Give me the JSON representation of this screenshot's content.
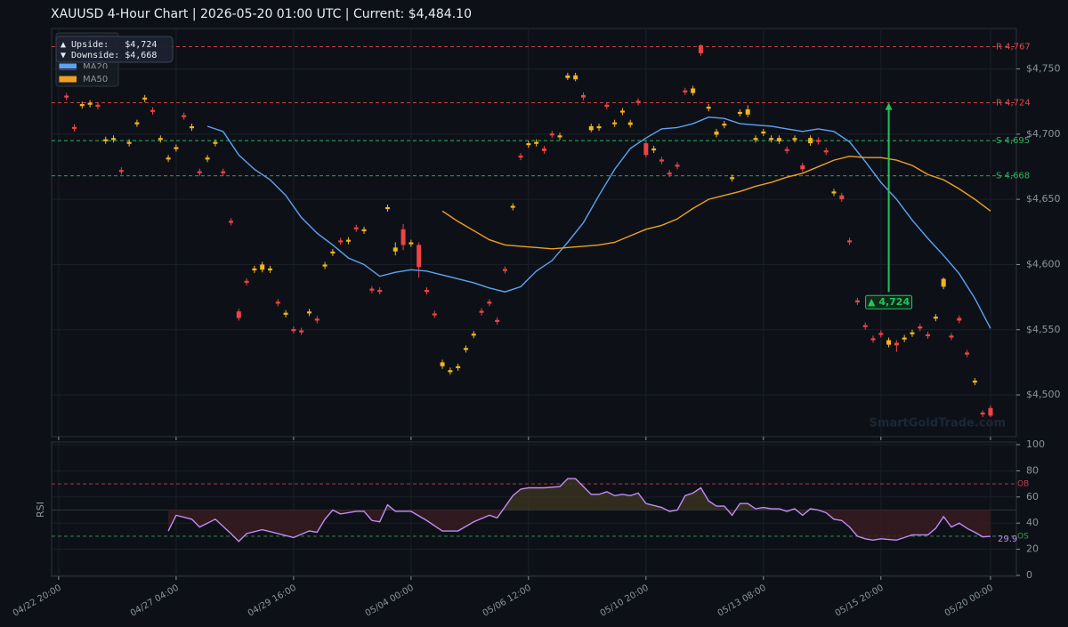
{
  "chart_data": [
    {
      "type": "candlestick",
      "title": "XAUUSD  4-Hour Chart  |  2026-05-20 01:00 UTC  |  Current: $4,484.10",
      "x": [
        1,
        2,
        3,
        4,
        5,
        6,
        7,
        8,
        9,
        10,
        11,
        12,
        13,
        14,
        15,
        16,
        17,
        18,
        19,
        20,
        21,
        22,
        23,
        24,
        25,
        26,
        27,
        28,
        29,
        30,
        31,
        32,
        33,
        34,
        35,
        36,
        37,
        38,
        39,
        40,
        41,
        42,
        43,
        44,
        45,
        46,
        47,
        48,
        49,
        50,
        51,
        52,
        53,
        54,
        55,
        56,
        57,
        58,
        59,
        60,
        61,
        62,
        63,
        64,
        65,
        66,
        67,
        68,
        69,
        70,
        71,
        72,
        73,
        74,
        75,
        76,
        77,
        78,
        79,
        80,
        81,
        82,
        83,
        84,
        85,
        86,
        87,
        88,
        89,
        90,
        91,
        92,
        93,
        94,
        95,
        96,
        97,
        98,
        99,
        100,
        101,
        102,
        103,
        104,
        105,
        106,
        107,
        108,
        109,
        110,
        111,
        112,
        113,
        114,
        115,
        116,
        117,
        118,
        119
      ],
      "open": [
        4729.5,
        4705.5,
        4721.5,
        4722.5,
        4722.5,
        4694.5,
        4695.5,
        4672.5,
        4692.5,
        4707.5,
        4726.5,
        4718.5,
        4695.5,
        4680.5,
        4688.5,
        4714.5,
        4704.5,
        4671.5,
        4680.5,
        4692.5,
        4671.5,
        4633.5,
        4564,
        4587.5,
        4595.5,
        4596,
        4595.5,
        4571.5,
        4561.5,
        4550.5,
        4549.5,
        4562.5,
        4558.5,
        4598.5,
        4608.5,
        4618.5,
        4617.5,
        4628.5,
        4625.5,
        4581.5,
        4580.5,
        4642.5,
        4610,
        4627,
        4615.5,
        4615,
        4580.5,
        4562.5,
        4522,
        4517.5,
        4520.5,
        4534.5,
        4545.5,
        4564.5,
        4571.5,
        4557.5,
        4596.5,
        4643.5,
        4683.5,
        4691.5,
        4692.5,
        4689,
        4700.5,
        4697.5,
        4743,
        4742,
        4730,
        4703,
        4704.5,
        4722.5,
        4707.5,
        4716.5,
        4707,
        4725.5,
        4693,
        4687.5,
        4680.5,
        4670.5,
        4676.5,
        4733.5,
        4731.5,
        4768,
        4719.5,
        4699.5,
        4706.5,
        4665.5,
        4715.5,
        4715,
        4695.5,
        4700.5,
        4695.5,
        4694.5,
        4688.5,
        4695.5,
        4676,
        4693,
        4695.5,
        4687.5,
        4654.5,
        4653,
        4618.5,
        4572.5,
        4553.5,
        4543.5,
        4547.5,
        4538.5,
        4540,
        4542.5,
        4546.5,
        4552.5,
        4546.5,
        4558.5,
        4583,
        4545.5,
        4559,
        4532.5,
        4509.5,
        4486.5,
        4490
      ],
      "high": [
        4731.5,
        4707.5,
        4725,
        4726,
        4724.5,
        4698,
        4699,
        4674.5,
        4696,
        4711,
        4730,
        4720.5,
        4699,
        4684,
        4692,
        4716.5,
        4708,
        4673.5,
        4684,
        4696,
        4673.5,
        4635.5,
        4566,
        4589.5,
        4599,
        4602,
        4599,
        4573.5,
        4565,
        4552.5,
        4551.5,
        4566,
        4560.5,
        4602,
        4612,
        4620.5,
        4621,
        4630.5,
        4629,
        4583.5,
        4582.5,
        4646,
        4617,
        4631,
        4619,
        4617,
        4582.5,
        4564.5,
        4527,
        4521,
        4524,
        4538,
        4549,
        4566.5,
        4573.5,
        4559.5,
        4598.5,
        4647,
        4685.5,
        4695,
        4696,
        4691,
        4702.5,
        4701,
        4747,
        4747,
        4732,
        4708,
        4708,
        4724.5,
        4711,
        4720,
        4711,
        4727.5,
        4695,
        4691,
        4682.5,
        4672.5,
        4678.5,
        4735.5,
        4737,
        4769,
        4723,
        4704,
        4710,
        4669,
        4719,
        4722,
        4699,
        4704,
        4699,
        4699,
        4690.5,
        4699,
        4678,
        4699,
        4697.5,
        4689.5,
        4658,
        4655,
        4620.5,
        4574.5,
        4555.5,
        4545.5,
        4549.5,
        4544,
        4542,
        4546,
        4550,
        4554.5,
        4548.5,
        4562,
        4590,
        4547.5,
        4561,
        4534.5,
        4513,
        4488,
        4492
      ],
      "low": [
        4726,
        4702,
        4719.5,
        4720.5,
        4719,
        4692.5,
        4693.5,
        4669,
        4690.5,
        4705.5,
        4724.5,
        4715,
        4693.5,
        4678.5,
        4686.5,
        4711,
        4702.5,
        4668,
        4678.5,
        4690.5,
        4668,
        4630,
        4557,
        4584,
        4593.5,
        4594,
        4593.5,
        4568,
        4559.5,
        4547,
        4546,
        4560.5,
        4555,
        4596.5,
        4606.5,
        4615,
        4615.5,
        4625,
        4623.5,
        4578,
        4577,
        4640.5,
        4607,
        4611,
        4613.5,
        4590,
        4577,
        4559,
        4520,
        4515.5,
        4518.5,
        4532.5,
        4543.5,
        4561,
        4568,
        4554,
        4593,
        4641.5,
        4680,
        4689.5,
        4690.5,
        4685,
        4697,
        4695.5,
        4741.5,
        4740.5,
        4726,
        4701.5,
        4702.5,
        4719,
        4705.5,
        4714.5,
        4705,
        4722,
        4682,
        4685.5,
        4677,
        4667,
        4673,
        4730,
        4729.5,
        4760,
        4717.5,
        4697.5,
        4704.5,
        4663.5,
        4713.5,
        4713,
        4693.5,
        4698.5,
        4693.5,
        4692.5,
        4685,
        4693.5,
        4671,
        4691,
        4692,
        4684,
        4652.5,
        4648,
        4615,
        4569,
        4550,
        4540,
        4544,
        4536.5,
        4533,
        4540.5,
        4544.5,
        4549,
        4543,
        4556.5,
        4581,
        4542,
        4555,
        4529,
        4507.5,
        4483,
        4483
      ],
      "close": [
        4728,
        4704,
        4723,
        4724,
        4721,
        4696,
        4697,
        4671,
        4694,
        4709,
        4728,
        4717,
        4697,
        4682,
        4690,
        4713,
        4706,
        4670,
        4682,
        4694,
        4670,
        4632,
        4559,
        4586,
        4597,
        4600,
        4597,
        4570,
        4563,
        4549,
        4548,
        4564,
        4557,
        4600,
        4610,
        4617,
        4619,
        4627,
        4627,
        4580,
        4579,
        4644,
        4613,
        4615,
        4617,
        4598,
        4579,
        4561,
        4525,
        4519,
        4522,
        4536,
        4547,
        4563,
        4570,
        4556,
        4595,
        4645,
        4682,
        4693,
        4694,
        4687,
        4699,
        4699,
        4745,
        4745,
        4728,
        4706,
        4706,
        4721,
        4709,
        4718,
        4709,
        4724,
        4684,
        4689,
        4679,
        4669,
        4675,
        4732,
        4735,
        4762,
        4721,
        4702,
        4708,
        4667,
        4717,
        4719,
        4697,
        4702,
        4697,
        4697,
        4687,
        4697,
        4673,
        4697,
        4694,
        4686,
        4656,
        4650,
        4617,
        4571,
        4552,
        4542,
        4546,
        4542,
        4538,
        4544,
        4548,
        4551,
        4545,
        4560,
        4589,
        4544,
        4557,
        4531,
        4511,
        4485,
        4484.1
      ],
      "up_color": "#f5b324",
      "down_color": "#ef4444",
      "series": [
        {
          "name": "MA20",
          "color": "#5ea2f5",
          "x": [
            19,
            21,
            23,
            25,
            27,
            29,
            31,
            33,
            35,
            37,
            39,
            41,
            43,
            45,
            47,
            49,
            51,
            53,
            55,
            57,
            59,
            61,
            63,
            65,
            67,
            69,
            71,
            73,
            75,
            77,
            79,
            81,
            83,
            85,
            87,
            89,
            91,
            93,
            95,
            97,
            99,
            101,
            103,
            105,
            107,
            109,
            111,
            113,
            115,
            117,
            119
          ],
          "values": [
            4706,
            4702,
            4684,
            4673,
            4665,
            4653,
            4636,
            4624,
            4615,
            4605,
            4600,
            4591,
            4594,
            4596,
            4595,
            4592,
            4589,
            4586,
            4582,
            4579,
            4583,
            4595,
            4603,
            4617,
            4632,
            4653,
            4673,
            4689,
            4697,
            4704,
            4705,
            4708,
            4713,
            4712,
            4708,
            4707,
            4706,
            4704,
            4702,
            4704,
            4702,
            4694,
            4679,
            4663,
            4650,
            4634,
            4620,
            4607,
            4593,
            4574,
            4551
          ]
        },
        {
          "name": "MA50",
          "color": "#f0a020",
          "x": [
            49,
            51,
            53,
            55,
            57,
            59,
            61,
            63,
            65,
            67,
            69,
            71,
            73,
            75,
            77,
            79,
            81,
            83,
            85,
            87,
            89,
            91,
            93,
            95,
            97,
            99,
            101,
            103,
            105,
            107,
            109,
            111,
            113,
            115,
            117,
            119
          ],
          "values": [
            4641,
            4633,
            4626,
            4619,
            4615,
            4614,
            4613,
            4612,
            4613,
            4614,
            4615,
            4617,
            4622,
            4627,
            4630,
            4635,
            4643,
            4650,
            4653,
            4656,
            4660,
            4663,
            4667,
            4670,
            4675,
            4680,
            4683,
            4682,
            4682,
            4680,
            4676,
            4669,
            4665,
            4658,
            4650,
            4641
          ]
        }
      ],
      "levels": [
        {
          "value": 4767,
          "label": "R 4,767",
          "color": "#e04848"
        },
        {
          "value": 4724,
          "label": "R 4,724",
          "color": "#e04848"
        },
        {
          "value": 4695,
          "label": "S 4,695",
          "color": "#2fb35a"
        },
        {
          "value": 4668,
          "label": "S 4,668",
          "color": "#2fb35a"
        }
      ],
      "annotation": {
        "text": "▲ 4,724",
        "x": 106,
        "y_from": 4579,
        "y_to": 4724,
        "color": "#22c55e"
      },
      "info": [
        "▲ Upside:   $4,724",
        "▼ Downside: $4,668"
      ],
      "watermark": "SmartGoldTrade.com",
      "xlim": [
        -0.9,
        122.3
      ],
      "ylim": [
        4468,
        4781
      ],
      "yticks": [
        {
          "value": 4500,
          "label": "$4,500"
        },
        {
          "value": 4550,
          "label": "$4,550"
        },
        {
          "value": 4600,
          "label": "$4,600"
        },
        {
          "value": 4650,
          "label": "$4,650"
        },
        {
          "value": 4700,
          "label": "$4,700"
        },
        {
          "value": 4750,
          "label": "$4,750"
        }
      ],
      "grid": true,
      "legend": "upper left"
    },
    {
      "type": "line",
      "ylabel": "RSI",
      "color": "#c38bf5",
      "x": [
        14,
        15,
        17,
        18,
        20,
        22,
        23,
        24,
        26,
        28,
        30,
        32,
        33,
        34,
        35,
        36,
        38,
        39,
        40,
        41,
        42,
        43,
        45,
        47,
        49,
        50,
        51,
        53,
        55,
        56,
        58,
        59,
        60,
        62,
        64,
        65,
        66,
        68,
        69,
        70,
        71,
        72,
        73,
        74,
        75,
        77,
        78,
        79,
        80,
        81,
        82,
        83,
        84,
        85,
        86,
        87,
        88,
        89,
        90,
        91,
        92,
        93,
        94,
        95,
        96,
        97,
        98,
        99,
        100,
        101,
        102,
        103,
        104,
        105,
        107,
        108,
        109,
        111,
        112,
        113,
        114,
        115,
        116,
        117,
        118,
        119
      ],
      "values": [
        34,
        46,
        43,
        37,
        43,
        32,
        26,
        32,
        35,
        32,
        29,
        34,
        33,
        43,
        50,
        47,
        49,
        49,
        42,
        41,
        54,
        49,
        49,
        42,
        34,
        34,
        34,
        41,
        46,
        44,
        61,
        66,
        67,
        67,
        68,
        74,
        74,
        62,
        62,
        64,
        61,
        62,
        61,
        63,
        55,
        52,
        49,
        50,
        61,
        63,
        67,
        57,
        53,
        53,
        46,
        55,
        55,
        51,
        52,
        51,
        51,
        49,
        51,
        46,
        51,
        50,
        48,
        43,
        42,
        37,
        30,
        28,
        27,
        28,
        27,
        29,
        31,
        31,
        36,
        45,
        37,
        40,
        36,
        33,
        29.5,
        29.9
      ],
      "levels": [
        {
          "value": 70,
          "label": "OB",
          "color": "#c0404a"
        },
        {
          "value": 30,
          "label": "OS",
          "color": "#2fa050"
        }
      ],
      "midline": 50,
      "xlim": [
        -0.9,
        122.3
      ],
      "ylim": [
        0,
        100
      ],
      "yticks": [
        0,
        20,
        40,
        60,
        80,
        100
      ],
      "xticks": [
        {
          "value": 0,
          "label": "04/22 20:00"
        },
        {
          "value": 15,
          "label": "04/27 04:00"
        },
        {
          "value": 30,
          "label": "04/29 16:00"
        },
        {
          "value": 45,
          "label": "05/04 00:00"
        },
        {
          "value": 60,
          "label": "05/06 12:00"
        },
        {
          "value": 75,
          "label": "05/10 20:00"
        },
        {
          "value": 90,
          "label": "05/13 08:00"
        },
        {
          "value": 105,
          "label": "05/15 20:00"
        },
        {
          "value": 119,
          "label": "05/20 00:00"
        }
      ],
      "grid": true
    }
  ]
}
